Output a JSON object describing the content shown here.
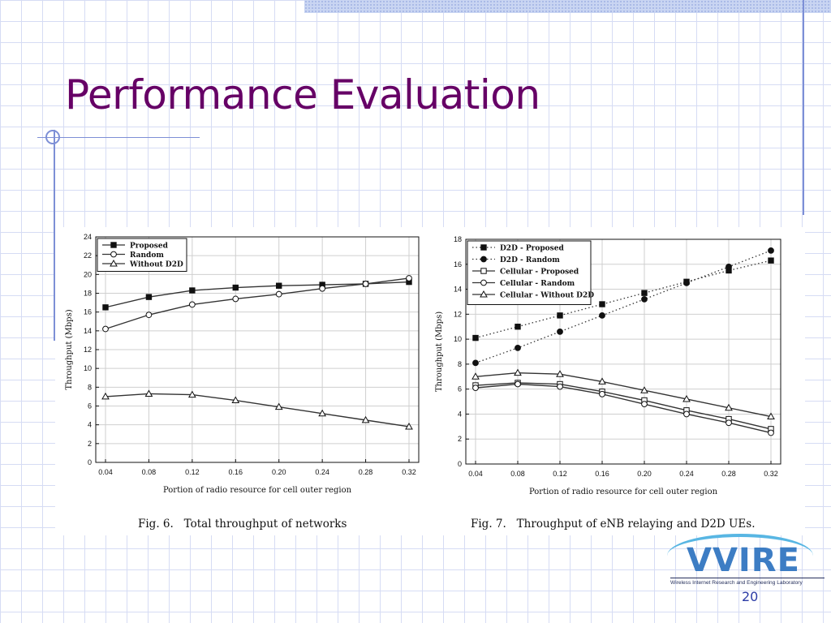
{
  "slide": {
    "title": "Performance Evaluation",
    "page_number": "20",
    "logo": {
      "word": "VVIRE",
      "subtitle": "Wireless Internet Research and Engineering Laboratory"
    }
  },
  "captions": {
    "fig6": "Fig. 6.   Total throughput of networks",
    "fig7": "Fig. 7.   Throughput of eNB relaying and D2D UEs."
  },
  "chart_data": [
    {
      "type": "line",
      "caption": "Fig. 6.   Total throughput of networks",
      "xlabel": "Portion of radio resource for cell outer region",
      "ylabel": "Throughput (Mbps)",
      "x": [
        0.04,
        0.08,
        0.12,
        0.16,
        0.2,
        0.24,
        0.28,
        0.32
      ],
      "x_tick_labels": [
        "0.04",
        "0.08",
        "0.12",
        "0.16",
        "0.20",
        "0.24",
        "0.28",
        "0.32"
      ],
      "xlim": [
        0.04,
        0.32
      ],
      "ylim": [
        0,
        24
      ],
      "y_ticks": [
        0,
        2,
        4,
        6,
        8,
        10,
        12,
        14,
        16,
        18,
        20,
        22,
        24
      ],
      "grid": true,
      "legend_position": "top-left",
      "series": [
        {
          "name": "Proposed",
          "marker": "square-filled",
          "line": "solid",
          "values": [
            16.5,
            17.6,
            18.3,
            18.6,
            18.8,
            18.9,
            19.0,
            19.2
          ]
        },
        {
          "name": "Random",
          "marker": "circle-open",
          "line": "solid",
          "values": [
            14.2,
            15.7,
            16.8,
            17.4,
            17.9,
            18.5,
            19.0,
            19.6
          ]
        },
        {
          "name": "Without D2D",
          "marker": "triangle-open",
          "line": "solid",
          "values": [
            7.0,
            7.3,
            7.2,
            6.6,
            5.9,
            5.2,
            4.5,
            3.8
          ]
        }
      ]
    },
    {
      "type": "line",
      "caption": "Fig. 7.   Throughput of eNB relaying and D2D UEs.",
      "xlabel": "Portion of radio resource for cell outer region",
      "ylabel": "Throughput (Mbps)",
      "x": [
        0.04,
        0.08,
        0.12,
        0.16,
        0.2,
        0.24,
        0.28,
        0.32
      ],
      "x_tick_labels": [
        "0.04",
        "0.08",
        "0.12",
        "0.16",
        "0.20",
        "0.24",
        "0.28",
        "0.32"
      ],
      "xlim": [
        0.04,
        0.32
      ],
      "ylim": [
        0,
        18
      ],
      "y_ticks": [
        0,
        2,
        4,
        6,
        8,
        10,
        12,
        14,
        16,
        18
      ],
      "grid": true,
      "legend_position": "top-left",
      "series": [
        {
          "name": "D2D - Proposed",
          "marker": "square-filled",
          "line": "dotted",
          "values": [
            10.1,
            11.0,
            11.9,
            12.8,
            13.7,
            14.6,
            15.5,
            16.3
          ]
        },
        {
          "name": "D2D - Random",
          "marker": "circle-filled",
          "line": "dotted",
          "values": [
            8.1,
            9.3,
            10.6,
            11.9,
            13.2,
            14.5,
            15.8,
            17.1
          ]
        },
        {
          "name": "Cellular - Proposed",
          "marker": "square-open",
          "line": "solid",
          "values": [
            6.3,
            6.5,
            6.4,
            5.8,
            5.1,
            4.3,
            3.6,
            2.8
          ]
        },
        {
          "name": "Cellular - Random",
          "marker": "circle-open",
          "line": "solid",
          "values": [
            6.1,
            6.4,
            6.2,
            5.6,
            4.8,
            4.0,
            3.3,
            2.5
          ]
        },
        {
          "name": "Cellular - Without D2D",
          "marker": "triangle-open",
          "line": "solid",
          "values": [
            7.0,
            7.3,
            7.2,
            6.6,
            5.9,
            5.2,
            4.5,
            3.8
          ]
        }
      ]
    }
  ]
}
